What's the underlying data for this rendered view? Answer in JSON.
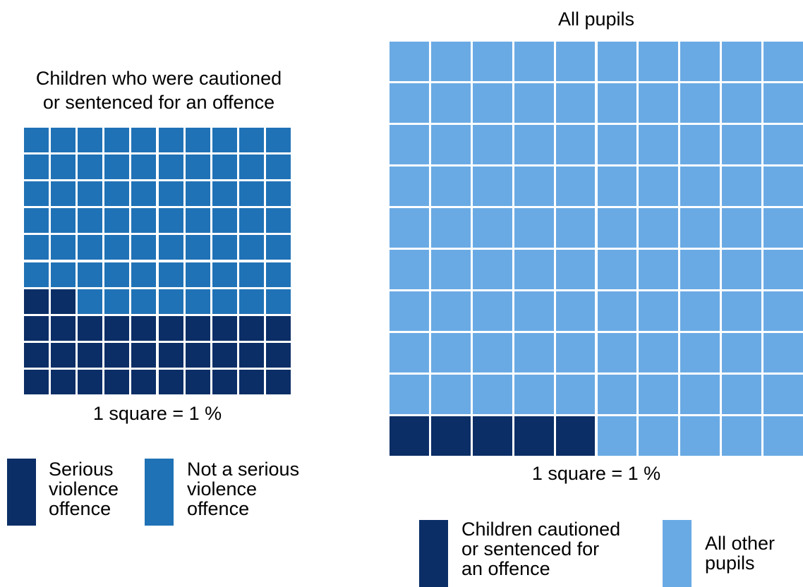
{
  "colors": {
    "serious": "#0B2E66",
    "not_serious": "#2072B6",
    "cautioned": "#0B2E66",
    "other_pupils": "#6AAAE4"
  },
  "chart_data": [
    {
      "type": "waffle",
      "title": "Children who were cautioned or sentenced for an offence",
      "title_lines": [
        "Children who were cautioned",
        "or sentenced for an offence"
      ],
      "unit_caption": "1 square = 1 %",
      "rows": 10,
      "cols": 10,
      "fill_order": "bottom-up, left-to-right",
      "series": [
        {
          "name": "Serious violence offence",
          "name_lines": [
            "Serious",
            "violence",
            "offence"
          ],
          "value": 32,
          "color": "#0B2E66"
        },
        {
          "name": "Not a serious violence offence",
          "name_lines": [
            "Not a serious",
            "violence",
            "offence"
          ],
          "value": 68,
          "color": "#2072B6"
        }
      ]
    },
    {
      "type": "waffle",
      "title": "All pupils",
      "title_lines": [
        "All pupils"
      ],
      "unit_caption": "1 square = 1 %",
      "rows": 10,
      "cols": 10,
      "fill_order": "bottom-up, left-to-right",
      "series": [
        {
          "name": "Children cautioned or sentenced for an offence",
          "name_lines": [
            "Children cautioned",
            "or sentenced for",
            "an offence"
          ],
          "value": 5,
          "color": "#0B2E66"
        },
        {
          "name": "All other pupils",
          "name_lines": [
            "All other",
            "pupils"
          ],
          "value": 95,
          "color": "#6AAAE4"
        }
      ]
    }
  ]
}
